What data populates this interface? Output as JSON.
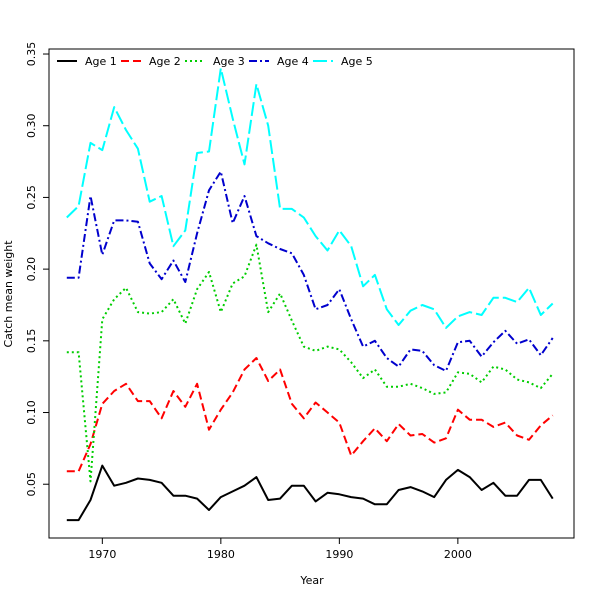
{
  "chart_data": {
    "type": "line",
    "title": "",
    "xlabel": "Year",
    "ylabel": "Catch mean weight",
    "xlim": [
      1965.5,
      2009.8
    ],
    "ylim": [
      0.0125,
      0.3535
    ],
    "xticks": [
      1970,
      1980,
      1990,
      2000
    ],
    "yticks": [
      0.05,
      0.1,
      0.15,
      0.2,
      0.25,
      0.3,
      0.35
    ],
    "ytick_labels": [
      "0.05",
      "0.10",
      "0.15",
      "0.20",
      "0.25",
      "0.30",
      "0.35"
    ],
    "legend_position": "top-left",
    "grid": false,
    "x": [
      1967,
      1968,
      1969,
      1970,
      1971,
      1972,
      1973,
      1974,
      1975,
      1976,
      1977,
      1978,
      1979,
      1980,
      1981,
      1982,
      1983,
      1984,
      1985,
      1986,
      1987,
      1988,
      1989,
      1990,
      1991,
      1992,
      1993,
      1994,
      1995,
      1996,
      1997,
      1998,
      1999,
      2000,
      2001,
      2002,
      2003,
      2004,
      2005,
      2006,
      2007,
      2008
    ],
    "series": [
      {
        "name": "Age 1",
        "color": "#000000",
        "dash": "solid",
        "values": [
          0.025,
          0.025,
          0.039,
          0.063,
          0.049,
          0.051,
          0.054,
          0.053,
          0.051,
          0.042,
          0.042,
          0.04,
          0.032,
          0.041,
          0.045,
          0.049,
          0.055,
          0.039,
          0.04,
          0.049,
          0.049,
          0.038,
          0.044,
          0.043,
          0.041,
          0.04,
          0.036,
          0.036,
          0.046,
          0.048,
          0.045,
          0.041,
          0.053,
          0.06,
          0.055,
          0.046,
          0.051,
          0.042,
          0.042,
          0.053,
          0.053,
          0.04
        ]
      },
      {
        "name": "Age 2",
        "color": "#ff0000",
        "dash": "dashed",
        "values": [
          0.059,
          0.059,
          0.078,
          0.106,
          0.115,
          0.12,
          0.108,
          0.108,
          0.096,
          0.115,
          0.104,
          0.12,
          0.088,
          0.102,
          0.114,
          0.13,
          0.138,
          0.122,
          0.13,
          0.106,
          0.096,
          0.107,
          0.1,
          0.093,
          0.07,
          0.08,
          0.089,
          0.08,
          0.092,
          0.084,
          0.085,
          0.079,
          0.082,
          0.102,
          0.095,
          0.095,
          0.09,
          0.093,
          0.084,
          0.081,
          0.091,
          0.098
        ]
      },
      {
        "name": "Age 3",
        "color": "#00cd00",
        "dash": "dotted",
        "values": [
          0.142,
          0.142,
          0.052,
          0.165,
          0.179,
          0.187,
          0.17,
          0.169,
          0.17,
          0.179,
          0.162,
          0.186,
          0.198,
          0.17,
          0.19,
          0.195,
          0.217,
          0.17,
          0.183,
          0.164,
          0.146,
          0.143,
          0.146,
          0.144,
          0.135,
          0.124,
          0.13,
          0.118,
          0.118,
          0.12,
          0.117,
          0.113,
          0.114,
          0.128,
          0.127,
          0.121,
          0.132,
          0.13,
          0.123,
          0.121,
          0.117,
          0.127
        ]
      },
      {
        "name": "Age 4",
        "color": "#0000cd",
        "dash": "dashdot",
        "values": [
          0.194,
          0.194,
          0.251,
          0.21,
          0.234,
          0.234,
          0.233,
          0.204,
          0.193,
          0.206,
          0.191,
          0.225,
          0.255,
          0.268,
          0.232,
          0.251,
          0.223,
          0.218,
          0.214,
          0.211,
          0.196,
          0.172,
          0.175,
          0.186,
          0.165,
          0.146,
          0.15,
          0.138,
          0.132,
          0.144,
          0.143,
          0.133,
          0.129,
          0.149,
          0.15,
          0.139,
          0.149,
          0.157,
          0.148,
          0.151,
          0.14,
          0.152
        ]
      },
      {
        "name": "Age 5",
        "color": "#00ffff",
        "dash": "longdash",
        "values": [
          0.236,
          0.244,
          0.288,
          0.283,
          0.313,
          0.297,
          0.284,
          0.247,
          0.251,
          0.216,
          0.227,
          0.281,
          0.282,
          0.34,
          0.305,
          0.273,
          0.329,
          0.3,
          0.242,
          0.242,
          0.236,
          0.223,
          0.213,
          0.227,
          0.216,
          0.188,
          0.196,
          0.172,
          0.161,
          0.171,
          0.175,
          0.172,
          0.159,
          0.167,
          0.17,
          0.168,
          0.18,
          0.18,
          0.177,
          0.187,
          0.168,
          0.176
        ]
      }
    ]
  }
}
